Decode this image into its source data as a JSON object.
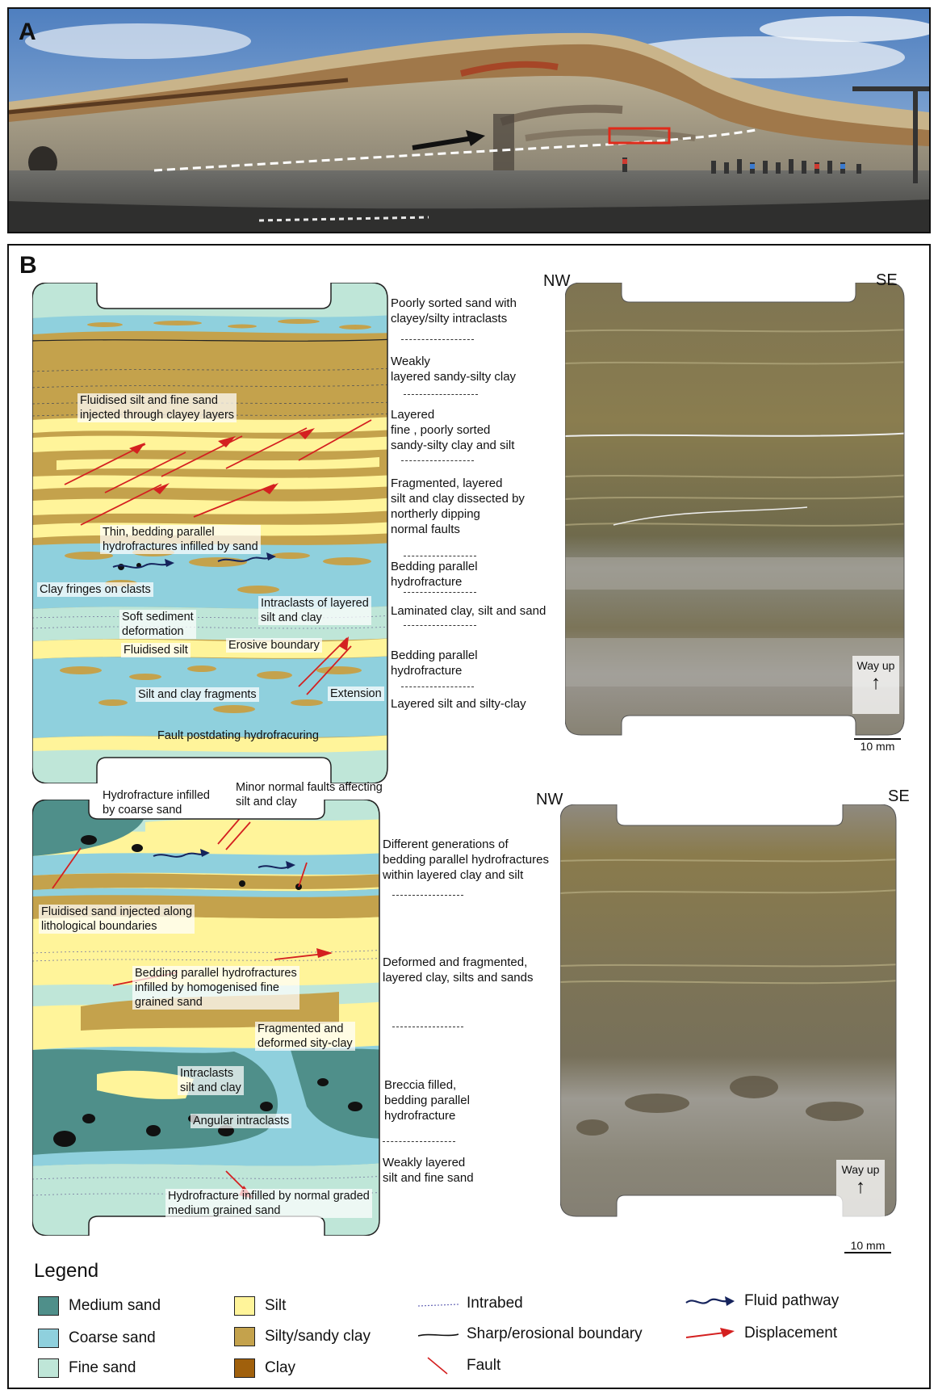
{
  "panel_a": {
    "label": "A"
  },
  "panel_b": {
    "label": "B"
  },
  "colors": {
    "medium_sand": "#4f8f8a",
    "coarse_sand": "#8fd0dd",
    "fine_sand": "#bfe6d8",
    "silt": "#fff49a",
    "silty_sandy_clay": "#c4a24c",
    "clay": "#a0600c",
    "fault": "#d42020",
    "fluid": "#15235c"
  },
  "top_section": {
    "descriptions": [
      "Poorly sorted sand with\nclayey/silty intraclasts",
      "Weakly\nlayered sandy-silty clay",
      "Layered\nfine , poorly sorted\nsandy-silty clay and silt",
      "Fragmented, layered\nsilt and clay dissected by\nnortherly dipping\nnormal faults",
      "Bedding parallel\nhydrofracture",
      "Laminated clay, silt and sand",
      "Bedding parallel\nhydrofracture",
      "Layered silt and silty-clay"
    ],
    "annotations": {
      "fluidised_silt": "Fluidised silt and fine sand\ninjected through clayey layers",
      "thin_hydrofractures": "Thin, bedding parallel\nhydrofractures  infilled by sand",
      "clay_fringes": "Clay fringes on clasts",
      "intraclasts": "Intraclasts of layered\nsilt and clay",
      "soft_sediment": "Soft sediment\ndeformation",
      "fluidised_silt_2": "Fluidised silt",
      "erosive_boundary": "Erosive boundary",
      "silt_clay_fragments": "Silt and clay fragments",
      "extension": "Extension",
      "fault_postdating": "Fault postdating hydrofracuring"
    },
    "nw": "NW",
    "se": "SE",
    "way_up": "Way up",
    "scale": "10 mm"
  },
  "bottom_section": {
    "descriptions": [
      "Different generations of\nbedding parallel hydrofractures\nwithin layered clay and silt",
      "Deformed and fragmented,\nlayered clay, silts and sands",
      "Breccia filled,\nbedding parallel\nhydrofracture",
      "Weakly layered\nsilt and fine sand"
    ],
    "annotations": {
      "hydrofracture_coarse": "Hydrofracture infilled\nby coarse sand",
      "minor_faults": "Minor normal faults affecting\nsilt and clay",
      "fluidised_sand": "Fluidised sand injected along\nlithological boundaries",
      "bedding_parallel": "Bedding parallel hydrofractures\ninfilled by homogenised fine\ngrained sand",
      "fragmented": "Fragmented and\ndeformed sity-clay",
      "intraclasts": "Intraclasts\nsilt and clay",
      "angular": "Angular intraclasts",
      "hydrofracture_medium": "Hydrofracture infilled by normal graded\nmedium grained sand"
    },
    "nw": "NW",
    "se": "SE",
    "way_up": "Way up",
    "scale": "10 mm"
  },
  "legend": {
    "title": "Legend",
    "items": [
      {
        "label": "Medium sand"
      },
      {
        "label": "Coarse sand"
      },
      {
        "label": "Fine sand"
      },
      {
        "label": "Silt"
      },
      {
        "label": "Silty/sandy clay"
      },
      {
        "label": "Clay"
      },
      {
        "label": "Intrabed"
      },
      {
        "label": "Sharp/erosional boundary"
      },
      {
        "label": "Fault"
      },
      {
        "label": "Fluid pathway"
      },
      {
        "label": "Displacement"
      }
    ]
  }
}
